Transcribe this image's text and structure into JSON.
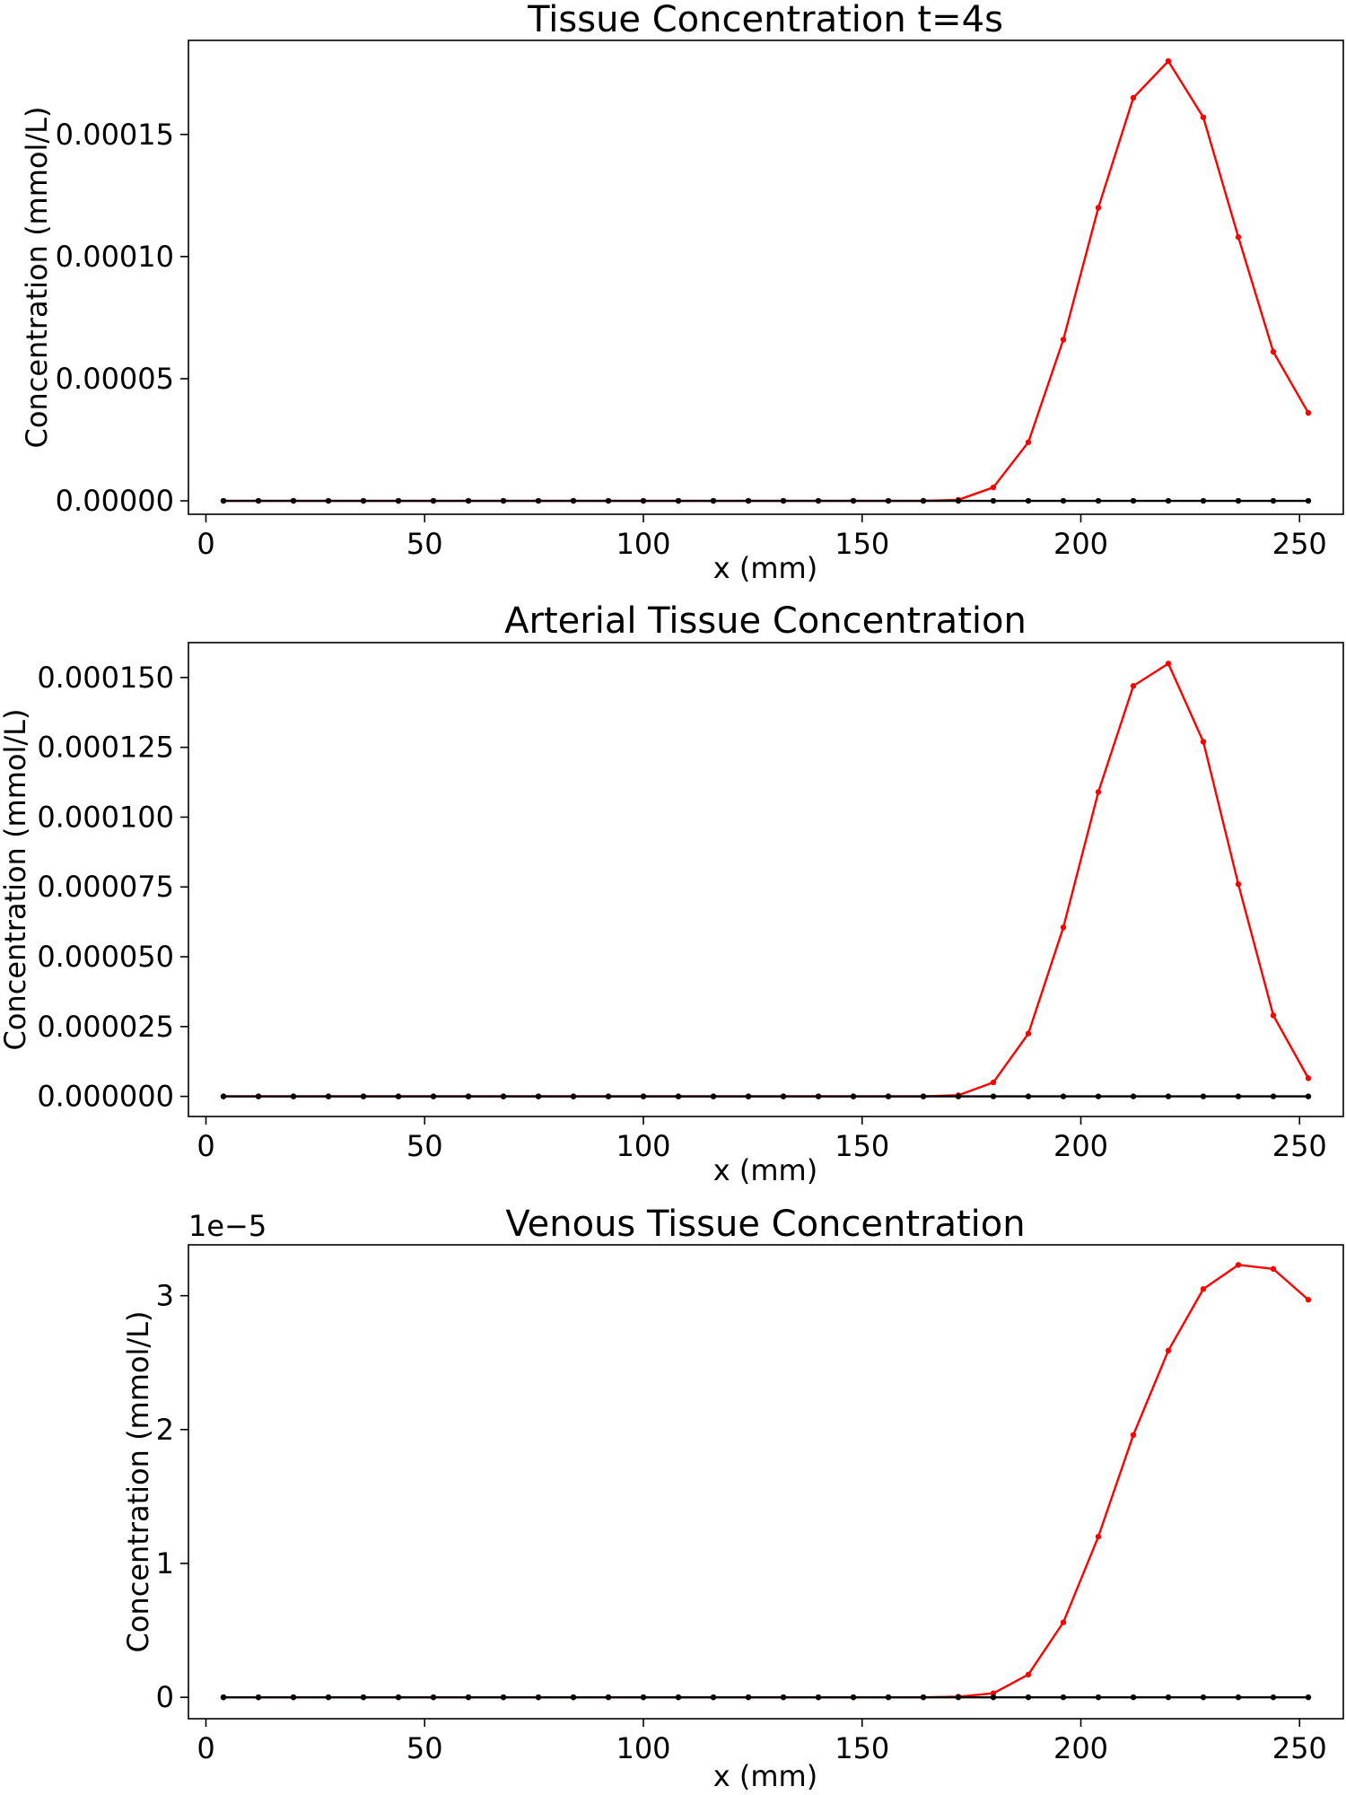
{
  "chart_data": [
    {
      "type": "line",
      "title": "Tissue Concentration t=4s",
      "xlabel": "x (mm)",
      "ylabel": "Concentration (mmol/L)",
      "offset_text": "",
      "x_domain": [
        -4,
        260
      ],
      "y_domain": [
        -5.5e-06,
        0.0001885
      ],
      "x_ticks": [
        0,
        50,
        100,
        150,
        200,
        250
      ],
      "x_tick_labels": [
        "0",
        "50",
        "100",
        "150",
        "200",
        "250"
      ],
      "y_ticks": [
        0,
        5e-05,
        0.0001,
        0.00015
      ],
      "y_tick_labels": [
        "0.00000",
        "0.00005",
        "0.00010",
        "0.00015"
      ],
      "x": [
        4,
        12,
        20,
        28,
        36,
        44,
        52,
        60,
        68,
        76,
        84,
        92,
        100,
        108,
        116,
        124,
        132,
        140,
        148,
        156,
        164,
        172,
        180,
        188,
        196,
        204,
        212,
        220,
        228,
        236,
        244,
        252
      ],
      "series": [
        {
          "color": "#ff0000",
          "values": [
            0,
            0,
            0,
            0,
            0,
            0,
            0,
            0,
            0,
            0,
            0,
            0,
            0,
            0,
            0,
            0,
            0,
            0,
            0,
            0,
            0,
            4e-07,
            5.5e-06,
            2.4e-05,
            6.6e-05,
            0.00012,
            0.000165,
            0.00018,
            0.000157,
            0.000108,
            6.1e-05,
            3.6e-05
          ]
        },
        {
          "color": "#000000",
          "values": [
            0,
            0,
            0,
            0,
            0,
            0,
            0,
            0,
            0,
            0,
            0,
            0,
            0,
            0,
            0,
            0,
            0,
            0,
            0,
            0,
            0,
            0,
            0,
            0,
            0,
            0,
            0,
            0,
            0,
            0,
            0,
            0
          ]
        }
      ]
    },
    {
      "type": "line",
      "title": "Arterial Tissue Concentration",
      "xlabel": "x (mm)",
      "ylabel": "Concentration (mmol/L)",
      "offset_text": "",
      "x_domain": [
        -4,
        260
      ],
      "y_domain": [
        -7.2e-06,
        0.0001625
      ],
      "x_ticks": [
        0,
        50,
        100,
        150,
        200,
        250
      ],
      "x_tick_labels": [
        "0",
        "50",
        "100",
        "150",
        "200",
        "250"
      ],
      "y_ticks": [
        0,
        2.5e-05,
        5e-05,
        7.5e-05,
        0.0001,
        0.000125,
        0.00015
      ],
      "y_tick_labels": [
        "0.000000",
        "0.000025",
        "0.000050",
        "0.000075",
        "0.000100",
        "0.000125",
        "0.000150"
      ],
      "x": [
        4,
        12,
        20,
        28,
        36,
        44,
        52,
        60,
        68,
        76,
        84,
        92,
        100,
        108,
        116,
        124,
        132,
        140,
        148,
        156,
        164,
        172,
        180,
        188,
        196,
        204,
        212,
        220,
        228,
        236,
        244,
        252
      ],
      "series": [
        {
          "color": "#ff0000",
          "values": [
            0,
            0,
            0,
            0,
            0,
            0,
            0,
            0,
            0,
            0,
            0,
            0,
            0,
            0,
            0,
            0,
            0,
            0,
            0,
            0,
            0,
            4e-07,
            5e-06,
            2.25e-05,
            6.05e-05,
            0.000109,
            0.000147,
            0.000155,
            0.000127,
            7.6e-05,
            2.9e-05,
            6.5e-06
          ]
        },
        {
          "color": "#000000",
          "values": [
            0,
            0,
            0,
            0,
            0,
            0,
            0,
            0,
            0,
            0,
            0,
            0,
            0,
            0,
            0,
            0,
            0,
            0,
            0,
            0,
            0,
            0,
            0,
            0,
            0,
            0,
            0,
            0,
            0,
            0,
            0,
            0
          ]
        }
      ]
    },
    {
      "type": "line",
      "title": "Venous Tissue Concentration",
      "xlabel": "x (mm)",
      "ylabel": "Concentration (mmol/L)",
      "offset_text": "1e−5",
      "x_domain": [
        -4,
        260
      ],
      "y_domain": [
        -1.6e-06,
        3.38e-05
      ],
      "x_ticks": [
        0,
        50,
        100,
        150,
        200,
        250
      ],
      "x_tick_labels": [
        "0",
        "50",
        "100",
        "150",
        "200",
        "250"
      ],
      "y_ticks": [
        0,
        1e-05,
        2e-05,
        3e-05
      ],
      "y_tick_labels": [
        "0",
        "1",
        "2",
        "3"
      ],
      "x": [
        4,
        12,
        20,
        28,
        36,
        44,
        52,
        60,
        68,
        76,
        84,
        92,
        100,
        108,
        116,
        124,
        132,
        140,
        148,
        156,
        164,
        172,
        180,
        188,
        196,
        204,
        212,
        220,
        228,
        236,
        244,
        252
      ],
      "series": [
        {
          "color": "#ff0000",
          "values": [
            0,
            0,
            0,
            0,
            0,
            0,
            0,
            0,
            0,
            0,
            0,
            0,
            0,
            0,
            0,
            0,
            0,
            0,
            0,
            0,
            0,
            5e-08,
            3e-07,
            1.7e-06,
            5.6e-06,
            1.2e-05,
            1.96e-05,
            2.59e-05,
            3.05e-05,
            3.23e-05,
            3.2e-05,
            2.97e-05
          ]
        },
        {
          "color": "#000000",
          "values": [
            0,
            0,
            0,
            0,
            0,
            0,
            0,
            0,
            0,
            0,
            0,
            0,
            0,
            0,
            0,
            0,
            0,
            0,
            0,
            0,
            0,
            0,
            0,
            0,
            0,
            0,
            0,
            0,
            0,
            0,
            0,
            0
          ]
        }
      ]
    }
  ]
}
